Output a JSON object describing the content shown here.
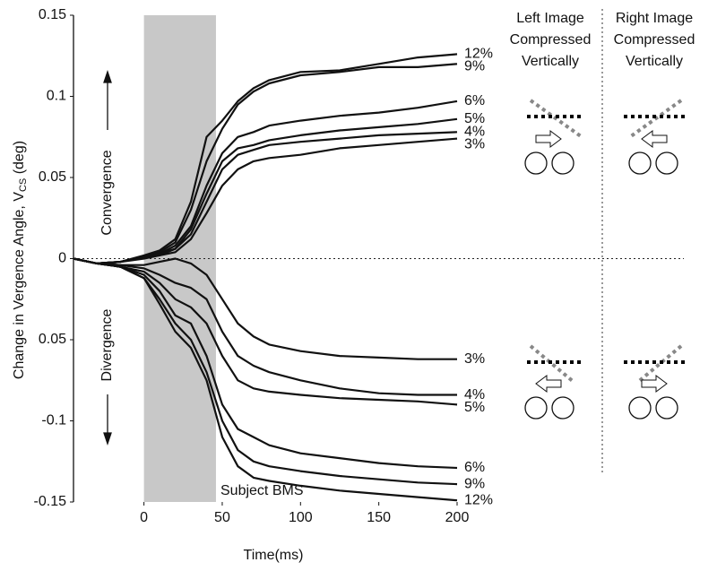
{
  "chart_data": {
    "type": "line",
    "xlabel": "Time(ms)",
    "ylabel": {
      "text": "Change in Vergence Angle, V",
      "subscript": "CS",
      "unit": " (deg)"
    },
    "xlim": [
      -45,
      200
    ],
    "ylim": [
      -0.15,
      0.15
    ],
    "xticks": [
      0,
      50,
      100,
      150,
      200
    ],
    "yticks": [
      0.15,
      0.1,
      0.05,
      0,
      {
        "value": -0.05,
        "label": "0.05"
      },
      -0.1,
      -0.15
    ],
    "highlight_x": [
      0,
      46
    ],
    "highlight_color": "#c8c8c8",
    "annotations": {
      "convergence": "Convergence",
      "divergence": "Divergence",
      "subject": "Subject BMS"
    },
    "panels": {
      "left": [
        "Left Image",
        "Compressed",
        "Vertically"
      ],
      "right": [
        "Right Image",
        "Compressed",
        "Vertically"
      ]
    },
    "x": [
      -45,
      -30,
      -15,
      0,
      10,
      20,
      30,
      40,
      50,
      60,
      70,
      80,
      100,
      125,
      150,
      175,
      200
    ],
    "series": [
      {
        "name": "12%",
        "color": "#111111",
        "values": [
          0,
          -0.003,
          -0.002,
          0.002,
          0.005,
          0.012,
          0.035,
          0.075,
          0.085,
          0.097,
          0.105,
          0.11,
          0.115,
          0.116,
          0.12,
          0.124,
          0.126
        ]
      },
      {
        "name": "9%",
        "color": "#111111",
        "values": [
          0,
          -0.003,
          -0.002,
          0.001,
          0.004,
          0.01,
          0.03,
          0.06,
          0.08,
          0.095,
          0.103,
          0.108,
          0.113,
          0.115,
          0.118,
          0.118,
          0.12
        ]
      },
      {
        "name": "6%",
        "color": "#111111",
        "values": [
          0,
          -0.003,
          -0.002,
          0.001,
          0.003,
          0.008,
          0.02,
          0.045,
          0.065,
          0.075,
          0.078,
          0.082,
          0.085,
          0.088,
          0.09,
          0.093,
          0.097
        ]
      },
      {
        "name": "5%",
        "color": "#111111",
        "values": [
          0,
          -0.003,
          -0.002,
          0.001,
          0.003,
          0.006,
          0.018,
          0.04,
          0.06,
          0.068,
          0.07,
          0.073,
          0.076,
          0.079,
          0.081,
          0.083,
          0.086
        ]
      },
      {
        "name": "4%",
        "color": "#111111",
        "values": [
          0,
          -0.003,
          -0.002,
          0.001,
          0.002,
          0.006,
          0.015,
          0.035,
          0.055,
          0.064,
          0.067,
          0.07,
          0.072,
          0.074,
          0.076,
          0.077,
          0.078
        ]
      },
      {
        "name": "3%",
        "color": "#111111",
        "values": [
          0,
          -0.003,
          -0.002,
          0,
          0.002,
          0.004,
          0.012,
          0.028,
          0.045,
          0.055,
          0.06,
          0.062,
          0.064,
          0.068,
          0.07,
          0.072,
          0.074
        ]
      },
      {
        "name": "3%",
        "color": "#111111",
        "values": [
          0,
          -0.003,
          -0.004,
          -0.004,
          -0.002,
          0,
          -0.003,
          -0.01,
          -0.025,
          -0.04,
          -0.048,
          -0.053,
          -0.057,
          -0.06,
          -0.061,
          -0.062,
          -0.062
        ]
      },
      {
        "name": "4%",
        "color": "#111111",
        "values": [
          0,
          -0.003,
          -0.004,
          -0.006,
          -0.01,
          -0.015,
          -0.018,
          -0.025,
          -0.045,
          -0.06,
          -0.066,
          -0.07,
          -0.075,
          -0.08,
          -0.083,
          -0.084,
          -0.084
        ]
      },
      {
        "name": "5%",
        "color": "#111111",
        "values": [
          0,
          -0.003,
          -0.005,
          -0.008,
          -0.015,
          -0.025,
          -0.03,
          -0.04,
          -0.06,
          -0.075,
          -0.08,
          -0.082,
          -0.084,
          -0.086,
          -0.087,
          -0.088,
          -0.09
        ]
      },
      {
        "name": "6%",
        "color": "#111111",
        "values": [
          0,
          -0.003,
          -0.005,
          -0.01,
          -0.02,
          -0.035,
          -0.04,
          -0.06,
          -0.09,
          -0.105,
          -0.11,
          -0.115,
          -0.12,
          -0.123,
          -0.126,
          -0.128,
          -0.129
        ]
      },
      {
        "name": "9%",
        "color": "#111111",
        "values": [
          0,
          -0.003,
          -0.005,
          -0.012,
          -0.025,
          -0.04,
          -0.05,
          -0.07,
          -0.1,
          -0.118,
          -0.125,
          -0.128,
          -0.131,
          -0.134,
          -0.136,
          -0.138,
          -0.139
        ]
      },
      {
        "name": "12%",
        "color": "#111111",
        "values": [
          0,
          -0.003,
          -0.005,
          -0.012,
          -0.028,
          -0.045,
          -0.055,
          -0.075,
          -0.11,
          -0.128,
          -0.135,
          -0.137,
          -0.14,
          -0.143,
          -0.145,
          -0.147,
          -0.149
        ]
      }
    ]
  }
}
